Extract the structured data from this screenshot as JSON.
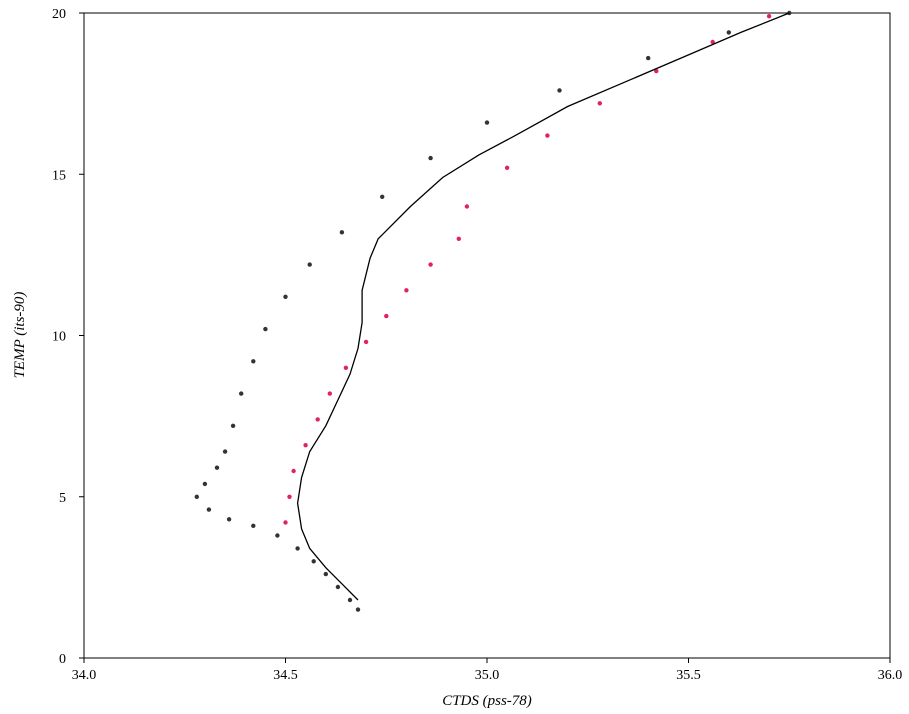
{
  "chart_data": {
    "type": "scatter",
    "xlabel": "CTDS (pss-78)",
    "ylabel": "TEMP (its-90)",
    "xlim": [
      34.0,
      36.0
    ],
    "ylim": [
      0,
      20
    ],
    "xticks": [
      "34.0",
      "34.5",
      "35.0",
      "35.5",
      "36.0"
    ],
    "yticks": [
      "0",
      "5",
      "10",
      "15",
      "20"
    ],
    "grid": false,
    "legend": "none",
    "colors": {
      "grey": "#333333",
      "pink": "#e0206a",
      "line": "#000000"
    },
    "series": [
      {
        "kind": "points",
        "color": "grey",
        "points": [
          [
            34.68,
            1.5
          ],
          [
            34.66,
            1.8
          ],
          [
            34.63,
            2.2
          ],
          [
            34.6,
            2.6
          ],
          [
            34.57,
            3.0
          ],
          [
            34.53,
            3.4
          ],
          [
            34.48,
            3.8
          ],
          [
            34.42,
            4.1
          ],
          [
            34.36,
            4.3
          ],
          [
            34.31,
            4.6
          ],
          [
            34.28,
            5.0
          ],
          [
            34.3,
            5.4
          ],
          [
            34.33,
            5.9
          ],
          [
            34.35,
            6.4
          ],
          [
            34.37,
            7.2
          ],
          [
            34.39,
            8.2
          ],
          [
            34.42,
            9.2
          ],
          [
            34.45,
            10.2
          ],
          [
            34.5,
            11.2
          ],
          [
            34.56,
            12.2
          ],
          [
            34.64,
            13.2
          ],
          [
            34.74,
            14.3
          ],
          [
            34.86,
            15.5
          ],
          [
            35.0,
            16.6
          ],
          [
            35.18,
            17.6
          ],
          [
            35.4,
            18.6
          ],
          [
            35.6,
            19.4
          ],
          [
            35.75,
            20.0
          ]
        ]
      },
      {
        "kind": "points",
        "color": "pink",
        "points": [
          [
            34.5,
            4.2
          ],
          [
            34.51,
            5.0
          ],
          [
            34.52,
            5.8
          ],
          [
            34.55,
            6.6
          ],
          [
            34.58,
            7.4
          ],
          [
            34.61,
            8.2
          ],
          [
            34.65,
            9.0
          ],
          [
            34.7,
            9.8
          ],
          [
            34.75,
            10.6
          ],
          [
            34.8,
            11.4
          ],
          [
            34.86,
            12.2
          ],
          [
            34.93,
            13.0
          ],
          [
            34.95,
            14.0
          ],
          [
            35.05,
            15.2
          ],
          [
            35.15,
            16.2
          ],
          [
            35.28,
            17.2
          ],
          [
            35.42,
            18.2
          ],
          [
            35.56,
            19.1
          ],
          [
            35.7,
            19.9
          ]
        ]
      },
      {
        "kind": "line",
        "color": "line",
        "points": [
          [
            34.68,
            1.8
          ],
          [
            34.64,
            2.3
          ],
          [
            34.6,
            2.8
          ],
          [
            34.56,
            3.4
          ],
          [
            34.54,
            4.0
          ],
          [
            34.53,
            4.8
          ],
          [
            34.54,
            5.6
          ],
          [
            34.56,
            6.4
          ],
          [
            34.6,
            7.2
          ],
          [
            34.63,
            8.0
          ],
          [
            34.66,
            8.8
          ],
          [
            34.68,
            9.6
          ],
          [
            34.69,
            10.4
          ],
          [
            34.69,
            11.4
          ],
          [
            34.71,
            12.4
          ],
          [
            34.73,
            13.0
          ],
          [
            34.81,
            14.0
          ],
          [
            34.89,
            14.9
          ],
          [
            34.98,
            15.6
          ],
          [
            35.07,
            16.2
          ],
          [
            35.2,
            17.1
          ],
          [
            35.35,
            17.9
          ],
          [
            35.5,
            18.7
          ],
          [
            35.63,
            19.4
          ],
          [
            35.75,
            20.0
          ]
        ]
      }
    ]
  }
}
